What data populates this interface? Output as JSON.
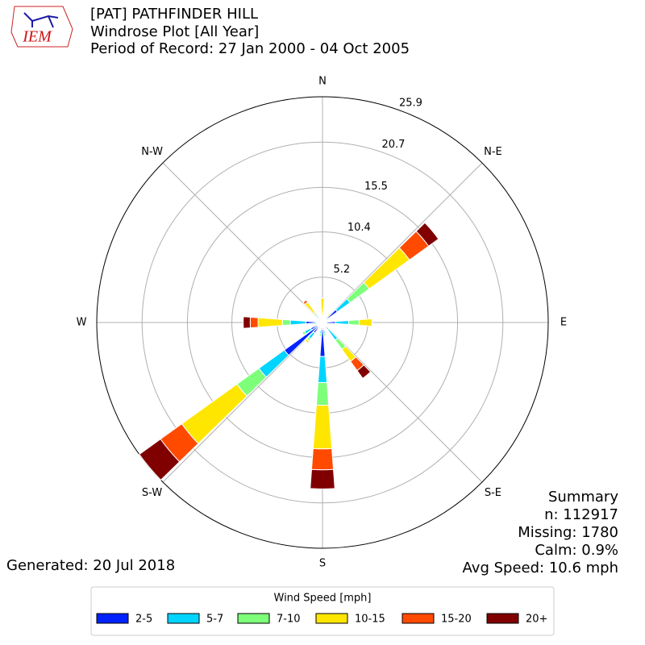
{
  "logo": "IEM",
  "chart_data": {
    "type": "windrose",
    "title": "[PAT] PATHFINDER HILL",
    "subtitle": [
      "Windrose Plot [All Year]",
      "Period of Record: 27 Jan 2000 - 04 Oct 2005"
    ],
    "x": [
      0,
      10,
      20,
      30,
      40,
      50,
      60,
      70,
      80,
      90,
      100,
      110,
      120,
      130,
      140,
      150,
      160,
      170,
      180,
      190,
      200,
      210,
      220,
      230,
      240,
      250,
      260,
      270,
      280,
      290,
      300,
      310,
      320,
      330,
      340,
      350
    ],
    "xticks": [
      {
        "value": 0,
        "label": "N"
      },
      {
        "value": 45,
        "label": "N-E"
      },
      {
        "value": 90,
        "label": "E"
      },
      {
        "value": 135,
        "label": "S-E"
      },
      {
        "value": 180,
        "label": "S"
      },
      {
        "value": 225,
        "label": "S-W"
      },
      {
        "value": 270,
        "label": "W"
      },
      {
        "value": 315,
        "label": "N-W"
      }
    ],
    "ylim": [
      0,
      25.9
    ],
    "yticks": [
      5.2,
      10.4,
      15.5,
      20.7,
      25.9
    ],
    "grid": true,
    "legend_title": "Wind Speed [mph]",
    "series": [
      {
        "name": "2-5",
        "color": "#0022ff",
        "values": [
          0.3,
          0.2,
          0.2,
          0.2,
          0.5,
          2.1,
          0.5,
          0.2,
          0.3,
          1.5,
          0.3,
          0.2,
          0.2,
          0.5,
          1.0,
          0.4,
          0.3,
          0.8,
          3.9,
          0.8,
          0.4,
          0.5,
          1.5,
          5.4,
          1.5,
          0.5,
          0.6,
          1.9,
          0.5,
          0.3,
          0.2,
          0.2,
          0.5,
          0.2,
          0.2,
          0.2
        ]
      },
      {
        "name": "5-7",
        "color": "#00d4ff",
        "values": [
          0.3,
          0.1,
          0.1,
          0.1,
          0.3,
          1.8,
          0.3,
          0.1,
          0.2,
          1.5,
          0.2,
          0.1,
          0.1,
          0.3,
          1.5,
          0.3,
          0.2,
          0.5,
          3.0,
          0.5,
          0.2,
          0.3,
          0.8,
          3.6,
          0.8,
          0.3,
          0.4,
          1.8,
          0.3,
          0.1,
          0.1,
          0.1,
          0.5,
          0.1,
          0.1,
          0.1
        ]
      },
      {
        "name": "7-10",
        "color": "#7dff7a",
        "values": [
          0.2,
          0,
          0,
          0,
          0.2,
          2.7,
          0.2,
          0,
          0,
          1.2,
          0,
          0,
          0,
          0.1,
          1.3,
          0,
          0,
          0.3,
          2.6,
          0.3,
          0,
          0,
          0.3,
          3.1,
          0.3,
          0,
          0.2,
          0.9,
          0,
          0,
          0,
          0,
          0.4,
          0,
          0,
          0
        ]
      },
      {
        "name": "10-15",
        "color": "#ffe600",
        "values": [
          2.0,
          0,
          0,
          0,
          0.3,
          5.7,
          0,
          0,
          0,
          1.5,
          0,
          0,
          0,
          0,
          1.7,
          0,
          0,
          0,
          5.0,
          0,
          0,
          0,
          0.3,
          7.8,
          0,
          0,
          0,
          2.8,
          0,
          0,
          0,
          0,
          1.5,
          0,
          0,
          0
        ]
      },
      {
        "name": "15-20",
        "color": "#ff4a00",
        "values": [
          0,
          0,
          0,
          0,
          0,
          2.7,
          0,
          0,
          0,
          0,
          0,
          0,
          0,
          0,
          1.3,
          0,
          0,
          0,
          2.4,
          0,
          0,
          0,
          0,
          3.0,
          0,
          0,
          0,
          0.9,
          0,
          0,
          0,
          0,
          0.3,
          0,
          0,
          0
        ]
      },
      {
        "name": "20+",
        "color": "#800000",
        "values": [
          0,
          0,
          0,
          0,
          0,
          1.4,
          0,
          0,
          0,
          0,
          0,
          0,
          0,
          0,
          1.1,
          0,
          0,
          0,
          2.2,
          0,
          0,
          0,
          0,
          3.0,
          0,
          0,
          0,
          0.8,
          0,
          0,
          0,
          0,
          0,
          0,
          0,
          0
        ]
      }
    ],
    "summary": [
      "Summary",
      "n: 112917",
      "Missing: 1780",
      "Calm: 0.9%",
      "Avg Speed: 10.6 mph"
    ],
    "generated": "Generated: 20 Jul 2018"
  }
}
